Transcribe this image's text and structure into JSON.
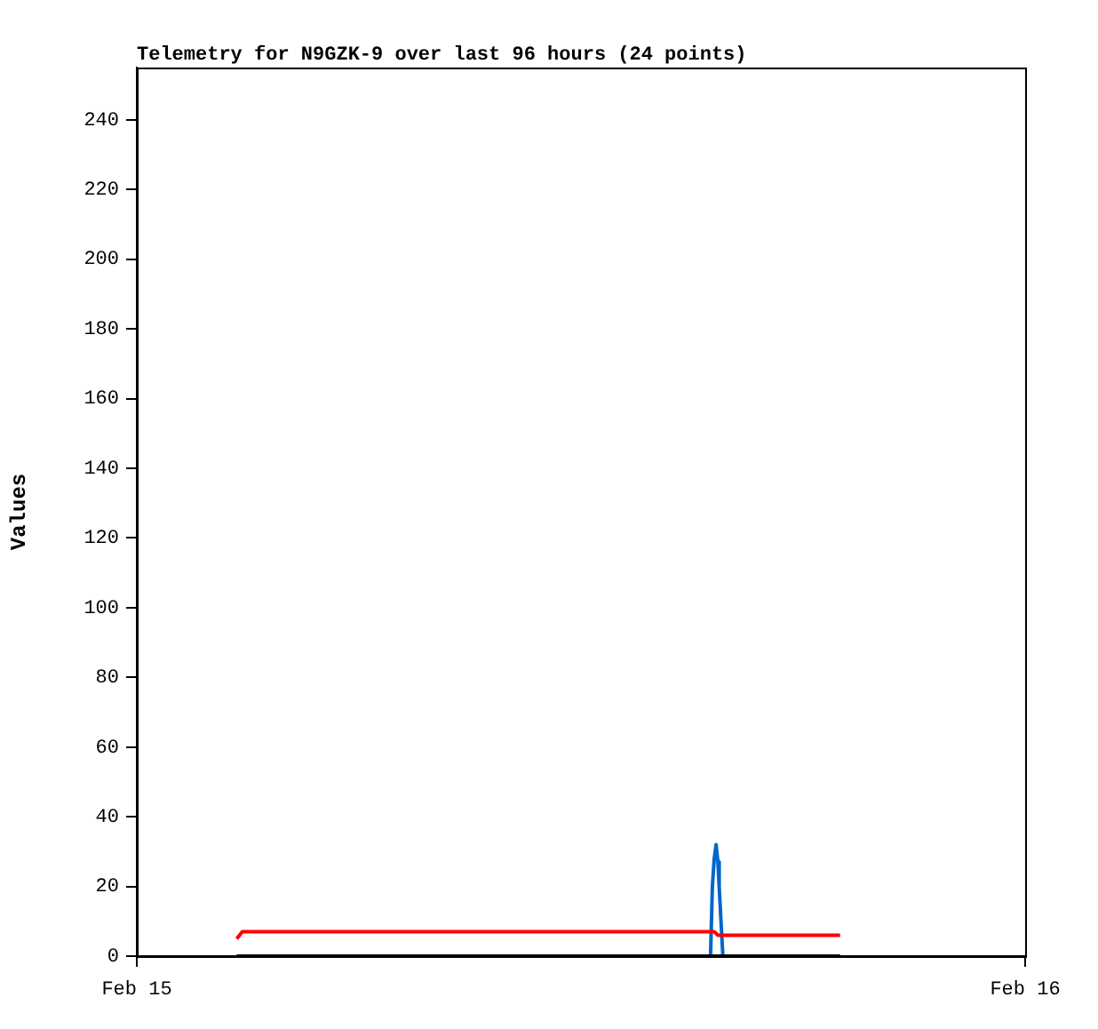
{
  "chart_data": {
    "type": "line",
    "title": "Telemetry for N9GZK-9 over last 96 hours (24 points)",
    "ylabel": "Values",
    "xlim": [
      "--02-15",
      "--02-16"
    ],
    "xticks": [
      {
        "value": "--02-15",
        "label": "Feb 15"
      },
      {
        "value": "--02-16",
        "label": "Feb 16"
      }
    ],
    "ylim": [
      0,
      255
    ],
    "yticks": [
      0,
      20,
      40,
      60,
      80,
      100,
      120,
      140,
      160,
      180,
      200,
      220,
      240
    ],
    "grid": false,
    "legend": false,
    "marker": "none",
    "line_style": "solid",
    "series": [
      {
        "color": "#000000",
        "x": [
          "--02-15T02:42",
          "--02-15T19:00"
        ],
        "values": [
          0,
          0
        ]
      },
      {
        "color": "#ff0000",
        "x": [
          "--02-15T02:42",
          "--02-15T02:51",
          "--02-15T15:36",
          "--02-15T15:42",
          "--02-15T19:00"
        ],
        "values": [
          5,
          7,
          7,
          6,
          6
        ]
      },
      {
        "color": "#0066cc",
        "x": [
          "--02-15T15:30",
          "--02-15T15:33",
          "--02-15T15:36",
          "--02-15T15:39",
          "--02-15T15:42",
          "--02-15T15:44",
          "--02-15T15:47",
          "--02-15T15:50"
        ],
        "values": [
          0,
          20,
          28,
          32,
          27,
          20,
          10,
          0
        ]
      }
    ]
  }
}
